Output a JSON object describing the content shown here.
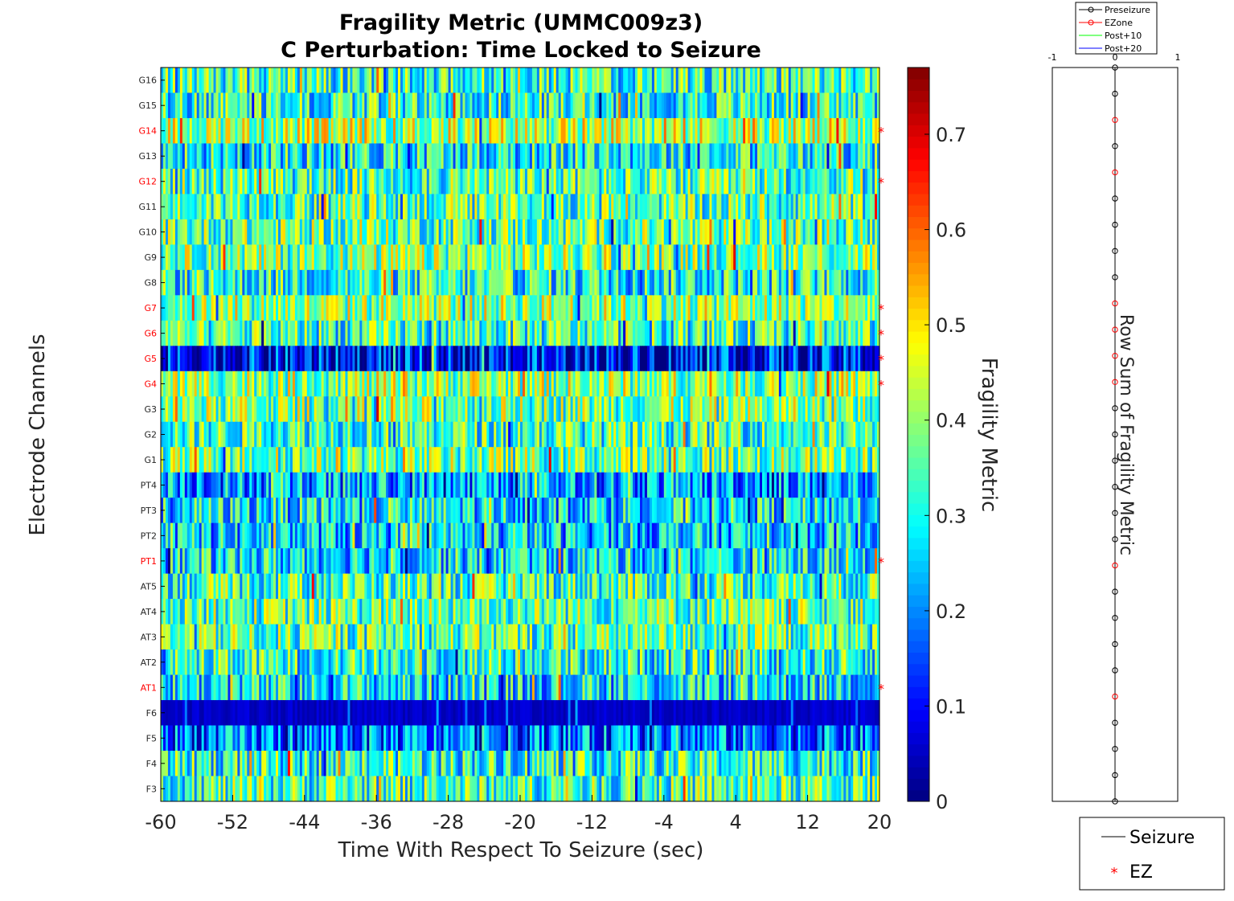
{
  "chart_data": [
    {
      "type": "heatmap",
      "title_lines": [
        "Fragility Metric (UMMC009z3)",
        "C Perturbation:  Time Locked to Seizure"
      ],
      "xlabel": "Time With Respect To Seizure (sec)",
      "ylabel": "Electrode Channels",
      "xlim": [
        -60,
        20
      ],
      "xticks": [
        "-60",
        "-52",
        "-44",
        "-36",
        "-28",
        "-20",
        "-12",
        "-4",
        "4",
        "12",
        "20"
      ],
      "channels": [
        "G16",
        "G15",
        "G14",
        "G13",
        "G12",
        "G11",
        "G10",
        "G9",
        "G8",
        "G7",
        "G6",
        "G5",
        "G4",
        "G3",
        "G2",
        "G1",
        "PT4",
        "PT3",
        "PT2",
        "PT1",
        "AT5",
        "AT4",
        "AT3",
        "AT2",
        "AT1",
        "F6",
        "F5",
        "F4",
        "F3"
      ],
      "ez_channels": [
        "G14",
        "G12",
        "G7",
        "G6",
        "G5",
        "G4",
        "PT1",
        "AT1"
      ],
      "row_mean_fragility": [
        0.33,
        0.32,
        0.42,
        0.3,
        0.34,
        0.35,
        0.36,
        0.38,
        0.31,
        0.4,
        0.33,
        0.1,
        0.4,
        0.38,
        0.34,
        0.37,
        0.22,
        0.28,
        0.25,
        0.28,
        0.34,
        0.36,
        0.35,
        0.32,
        0.28,
        0.03,
        0.18,
        0.32,
        0.34
      ],
      "colormap": "jet",
      "colorbar": {
        "label": "Fragility Metric",
        "range": [
          0,
          0.77
        ],
        "ticks": [
          "0",
          "0.1",
          "0.2",
          "0.3",
          "0.4",
          "0.5",
          "0.6",
          "0.7"
        ]
      }
    },
    {
      "type": "scatter",
      "ylabel": "Row Sum of Fragility Metric",
      "xlim": [
        -1,
        1
      ],
      "xticks": [
        "-1",
        "0",
        "1"
      ],
      "series": [
        {
          "name": "Preseizure",
          "color": "#000000",
          "marker": "circle"
        },
        {
          "name": "EZone",
          "color": "#ff0000",
          "marker": "circle"
        },
        {
          "name": "Post+10",
          "color": "#00ff00",
          "marker": "line"
        },
        {
          "name": "Post+20",
          "color": "#0000ff",
          "marker": "line"
        }
      ],
      "points_x": 0
    }
  ],
  "legend_main": [
    {
      "label": "Seizure",
      "color": "#000000",
      "marker": "line"
    },
    {
      "label": "EZ",
      "color": "#ff0000",
      "marker": "asterisk"
    }
  ]
}
